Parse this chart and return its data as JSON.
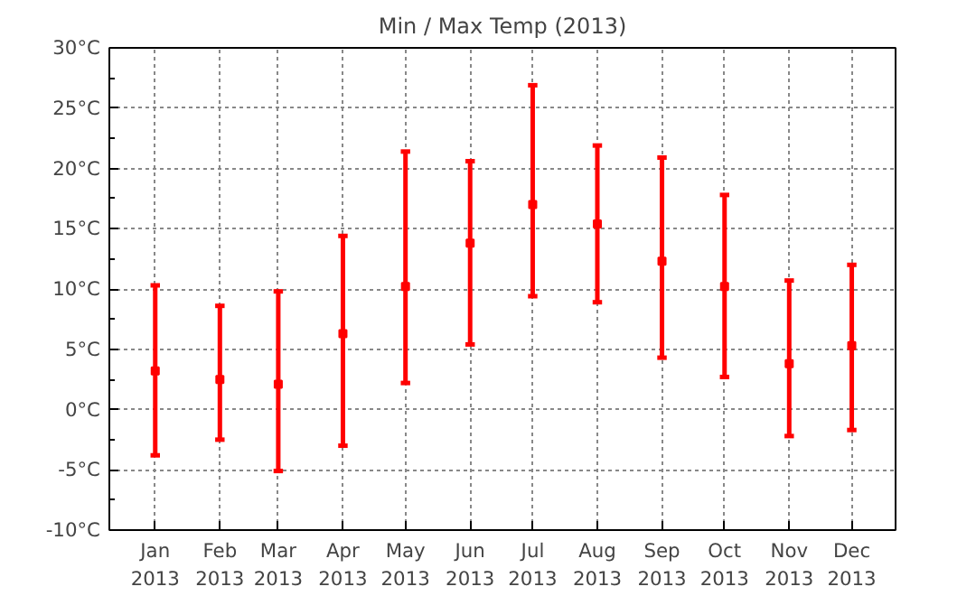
{
  "chart_data": {
    "type": "scatter",
    "title": "Min / Max Temp (2013)",
    "x": [
      "2013-01-01",
      "2013-02-01",
      "2013-03-01",
      "2013-04-01",
      "2013-05-01",
      "2013-06-01",
      "2013-07-01",
      "2013-08-01",
      "2013-09-01",
      "2013-10-01",
      "2013-11-01",
      "2013-12-01"
    ],
    "series": [
      {
        "color": "#ff0000",
        "values": [
          3.2,
          2.5,
          2.1,
          6.3,
          10.2,
          13.8,
          17.0,
          15.4,
          12.3,
          10.2,
          3.8,
          5.3
        ],
        "errors": [
          [
            -3.8,
            10.3
          ],
          [
            -2.5,
            8.6
          ],
          [
            -5.1,
            9.8
          ],
          [
            -3.0,
            14.4
          ],
          [
            2.2,
            21.4
          ],
          [
            5.4,
            20.6
          ],
          [
            9.4,
            26.9
          ],
          [
            8.9,
            21.9
          ],
          [
            4.3,
            20.9
          ],
          [
            2.7,
            17.8
          ],
          [
            -2.2,
            10.7
          ],
          [
            -1.7,
            12.0
          ]
        ]
      }
    ],
    "xlim": [
      "2012-12-10",
      "2013-12-22"
    ],
    "xticks": [
      {
        "value": "2013-01-01",
        "label": "Jan\n2013"
      },
      {
        "value": "2013-02-01",
        "label": "Feb\n2013"
      },
      {
        "value": "2013-03-01",
        "label": "Mar\n2013"
      },
      {
        "value": "2013-04-01",
        "label": "Apr\n2013"
      },
      {
        "value": "2013-05-01",
        "label": "May\n2013"
      },
      {
        "value": "2013-06-01",
        "label": "Jun\n2013"
      },
      {
        "value": "2013-07-01",
        "label": "Jul\n2013"
      },
      {
        "value": "2013-08-01",
        "label": "Aug\n2013"
      },
      {
        "value": "2013-09-01",
        "label": "Sep\n2013"
      },
      {
        "value": "2013-10-01",
        "label": "Oct\n2013"
      },
      {
        "value": "2013-11-01",
        "label": "Nov\n2013"
      },
      {
        "value": "2013-12-01",
        "label": "Dec\n2013"
      }
    ],
    "ylim": [
      -10,
      30
    ],
    "yticks": [
      {
        "value": -10,
        "label": "-10°C"
      },
      {
        "value": -5,
        "label": "-5°C"
      },
      {
        "value": 0,
        "label": "0°C"
      },
      {
        "value": 5,
        "label": "5°C"
      },
      {
        "value": 10,
        "label": "10°C"
      },
      {
        "value": 15,
        "label": "15°C"
      },
      {
        "value": 20,
        "label": "20°C"
      },
      {
        "value": 25,
        "label": "25°C"
      },
      {
        "value": 30,
        "label": "30°C"
      }
    ],
    "grid": true,
    "marker": "square"
  }
}
